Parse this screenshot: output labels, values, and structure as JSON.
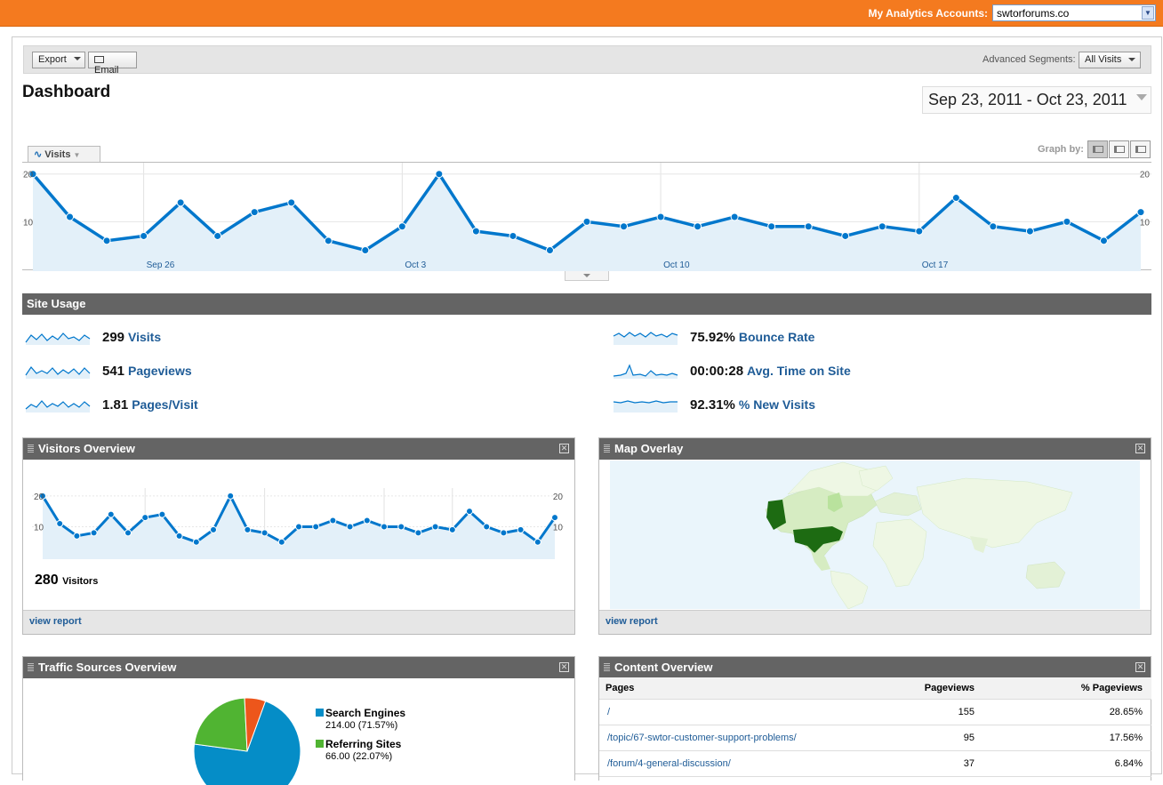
{
  "topbar": {
    "accounts_label": "My Analytics Accounts:",
    "account_value": "swtorforums.co"
  },
  "toolbar": {
    "export_label": "Export",
    "email_label": "Email",
    "advanced_segments_label": "Advanced Segments:",
    "segment_value": "All Visits"
  },
  "page": {
    "title": "Dashboard",
    "date_range": "Sep 23, 2011 - Oct 23, 2011"
  },
  "graph": {
    "tab_label": "Visits",
    "graph_by_label": "Graph by:"
  },
  "chart_data": [
    {
      "type": "area",
      "y_ticks": [
        "20",
        "10"
      ],
      "x_labels": [
        "Sep 26",
        "Oct 3",
        "Oct 10",
        "Oct 17"
      ],
      "values": [
        20,
        11,
        6,
        7,
        14,
        7,
        12,
        14,
        6,
        4,
        9,
        20,
        8,
        7,
        4,
        10,
        9,
        11,
        9,
        11,
        9,
        9,
        7,
        9,
        8,
        15,
        9,
        8,
        10,
        6,
        12
      ],
      "ylim": [
        0,
        22
      ]
    },
    {
      "type": "area",
      "y_ticks": [
        "20",
        "10"
      ],
      "values": [
        20,
        11,
        7,
        8,
        14,
        8,
        13,
        14,
        7,
        5,
        9,
        20,
        9,
        8,
        5,
        10,
        10,
        12,
        10,
        12,
        10,
        10,
        8,
        10,
        9,
        15,
        10,
        8,
        9,
        5,
        13
      ],
      "ylim": [
        0,
        22
      ]
    },
    {
      "type": "pie",
      "series": [
        {
          "name": "Search Engines",
          "value": 214.0,
          "label": "214.00 (71.57%)",
          "color": "#058dc7"
        },
        {
          "name": "Referring Sites",
          "value": 66.0,
          "label": "66.00 (22.07%)",
          "color": "#50b432"
        },
        {
          "value": 19,
          "color": "#ed561b"
        }
      ]
    }
  ],
  "site_usage": {
    "title": "Site Usage",
    "left": [
      {
        "value": "299",
        "label": "Visits"
      },
      {
        "value": "541",
        "label": "Pageviews"
      },
      {
        "value": "1.81",
        "label": "Pages/Visit"
      }
    ],
    "right": [
      {
        "value": "75.92%",
        "label": "Bounce Rate"
      },
      {
        "value": "00:00:28",
        "label": "Avg. Time on Site"
      },
      {
        "value": "92.31%",
        "label": "% New Visits"
      }
    ]
  },
  "visitors_overview": {
    "title": "Visitors Overview",
    "count": "280",
    "count_label": "Visitors",
    "view_report": "view report"
  },
  "map_overlay": {
    "title": "Map Overlay",
    "view_report": "view report"
  },
  "traffic_sources": {
    "title": "Traffic Sources Overview"
  },
  "content_overview": {
    "title": "Content Overview",
    "headers": {
      "pages": "Pages",
      "pageviews": "Pageviews",
      "pct": "% Pageviews"
    },
    "rows": [
      {
        "page": "/",
        "pageviews": "155",
        "pct": "28.65%"
      },
      {
        "page": "/topic/67-swtor-customer-support-problems/",
        "pageviews": "95",
        "pct": "17.56%"
      },
      {
        "page": "/forum/4-general-discussion/",
        "pageviews": "37",
        "pct": "6.84%"
      }
    ]
  },
  "colors": {
    "accent": "#f47a1f",
    "line": "#0077cc",
    "fill": "#e3f0f9",
    "header": "#646464"
  }
}
